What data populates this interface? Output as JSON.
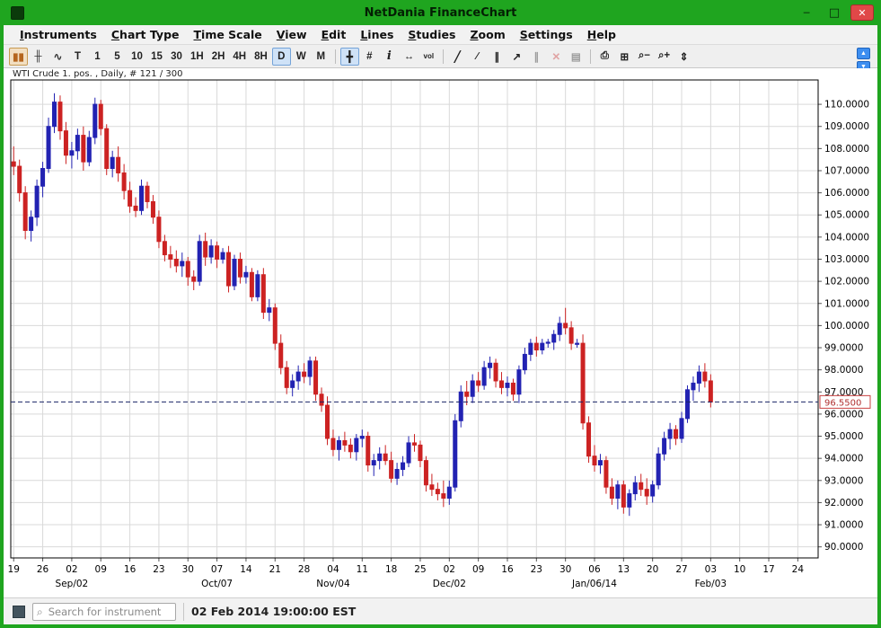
{
  "window": {
    "title": "NetDania FinanceChart",
    "minimize_glyph": "─",
    "maximize_glyph": "□",
    "close_glyph": "✕"
  },
  "menu": {
    "items": [
      {
        "label": "Instruments"
      },
      {
        "label": "Chart Type"
      },
      {
        "label": "Time Scale"
      },
      {
        "label": "View"
      },
      {
        "label": "Edit"
      },
      {
        "label": "Lines"
      },
      {
        "label": "Studies"
      },
      {
        "label": "Zoom"
      },
      {
        "label": "Settings"
      },
      {
        "label": "Help"
      }
    ]
  },
  "toolbar": {
    "buttons": [
      {
        "name": "candlestick-chart-button",
        "glyph": "▮▮",
        "color": "#b5651d",
        "pressed_warm": true
      },
      {
        "name": "ohlc-bar-chart-button",
        "glyph": "╫",
        "color": "#333333"
      },
      {
        "name": "line-chart-button",
        "glyph": "∿",
        "color": "#333333"
      },
      {
        "name": "tick-scale-button",
        "label": "T"
      },
      {
        "name": "scale-1m-button",
        "label": "1"
      },
      {
        "name": "scale-5m-button",
        "label": "5"
      },
      {
        "name": "scale-10m-button",
        "label": "10"
      },
      {
        "name": "scale-15m-button",
        "label": "15"
      },
      {
        "name": "scale-30m-button",
        "label": "30"
      },
      {
        "name": "scale-1h-button",
        "label": "1H"
      },
      {
        "name": "scale-2h-button",
        "label": "2H"
      },
      {
        "name": "scale-4h-button",
        "label": "4H"
      },
      {
        "name": "scale-8h-button",
        "label": "8H"
      },
      {
        "name": "scale-daily-button",
        "label": "D",
        "pressed": true
      },
      {
        "name": "scale-weekly-button",
        "label": "W"
      },
      {
        "name": "scale-monthly-button",
        "label": "M"
      },
      {
        "sep": true
      },
      {
        "name": "crosshair-button",
        "glyph": "╋",
        "pressed": true
      },
      {
        "name": "grid-button",
        "glyph": "#"
      },
      {
        "name": "info-button",
        "glyph": "i",
        "italic": true
      },
      {
        "name": "scroll-horizontal-button",
        "glyph": "↔"
      },
      {
        "name": "volume-button",
        "glyph": "vol",
        "tiny": true
      },
      {
        "sep": true
      },
      {
        "name": "trendline-button",
        "glyph": "╱"
      },
      {
        "name": "ray-line-button",
        "glyph": "∕"
      },
      {
        "name": "channel-lines-button",
        "glyph": "∥"
      },
      {
        "name": "draw-arrow-button",
        "glyph": "↗"
      },
      {
        "name": "parallel-line-button",
        "glyph": "∥",
        "disabled": true
      },
      {
        "name": "delete-drawing-button",
        "glyph": "✕",
        "color": "#cc3333",
        "disabled": true
      },
      {
        "name": "delete-studies-button",
        "glyph": "▤",
        "disabled": true
      },
      {
        "sep": true
      },
      {
        "name": "print-button",
        "glyph": "⎙"
      },
      {
        "name": "print-preview-button",
        "glyph": "⊞"
      },
      {
        "name": "zoom-out-button",
        "glyph": "⌕−"
      },
      {
        "name": "zoom-in-button",
        "glyph": "⌕+"
      },
      {
        "name": "fit-vertical-scale-button",
        "glyph": "⇕"
      }
    ],
    "scroll_up_glyph": "▲",
    "scroll_down_glyph": "▼"
  },
  "chart": {
    "label": "WTI Crude 1. pos. , Daily, # 121 / 300"
  },
  "chart_data": {
    "type": "candlestick",
    "instrument": "WTI Crude 1. pos.",
    "timeframe": "Daily",
    "bar_count_label": "# 121 / 300",
    "up_color": "#2222b2",
    "down_color": "#cc2222",
    "grid_color": "#d9d9d9",
    "dashed_line_color": "#1a2466",
    "price_tag_border": "#c84040",
    "price_tag_text": "#b03030",
    "y_min": 90,
    "y_max": 110,
    "y_step": 1,
    "price_scale_range": [
      89.5,
      111.1
    ],
    "total_slots": 139,
    "last_price": 96.55,
    "last_price_label": "96.5500",
    "x_ticks": [
      {
        "label": "19",
        "i": 0
      },
      {
        "label": "26",
        "i": 5
      },
      {
        "label": "02",
        "i": 10
      },
      {
        "label": "09",
        "i": 15
      },
      {
        "label": "16",
        "i": 20
      },
      {
        "label": "23",
        "i": 25
      },
      {
        "label": "30",
        "i": 30
      },
      {
        "label": "07",
        "i": 35
      },
      {
        "label": "14",
        "i": 40
      },
      {
        "label": "21",
        "i": 45
      },
      {
        "label": "28",
        "i": 50
      },
      {
        "label": "04",
        "i": 55
      },
      {
        "label": "11",
        "i": 60
      },
      {
        "label": "18",
        "i": 65
      },
      {
        "label": "25",
        "i": 70
      },
      {
        "label": "02",
        "i": 75
      },
      {
        "label": "09",
        "i": 80
      },
      {
        "label": "16",
        "i": 85
      },
      {
        "label": "23",
        "i": 90
      },
      {
        "label": "30",
        "i": 95
      },
      {
        "label": "06",
        "i": 100
      },
      {
        "label": "13",
        "i": 105
      },
      {
        "label": "20",
        "i": 110
      },
      {
        "label": "27",
        "i": 115
      },
      {
        "label": "03",
        "i": 120
      },
      {
        "label": "10",
        "i": 125
      },
      {
        "label": "17",
        "i": 130
      },
      {
        "label": "24",
        "i": 135
      }
    ],
    "month_ticks": [
      {
        "label": "Sep/02",
        "i": 10
      },
      {
        "label": "Oct/07",
        "i": 35
      },
      {
        "label": "Nov/04",
        "i": 55
      },
      {
        "label": "Dec/02",
        "i": 75
      },
      {
        "label": "Jan/06/14",
        "i": 100
      },
      {
        "label": "Feb/03",
        "i": 120
      }
    ],
    "candles": [
      [
        "08-19",
        107.4,
        108.1,
        106.8,
        107.2
      ],
      [
        "08-20",
        107.2,
        107.5,
        105.6,
        106.0
      ],
      [
        "08-21",
        106.0,
        106.3,
        103.9,
        104.3
      ],
      [
        "08-22",
        104.3,
        105.2,
        103.8,
        104.9
      ],
      [
        "08-23",
        104.9,
        106.6,
        104.5,
        106.3
      ],
      [
        "08-26",
        106.3,
        107.4,
        105.8,
        107.1
      ],
      [
        "08-27",
        107.1,
        109.4,
        106.9,
        109.0
      ],
      [
        "08-28",
        109.0,
        110.5,
        108.7,
        110.1
      ],
      [
        "08-29",
        110.1,
        110.4,
        108.4,
        108.8
      ],
      [
        "08-30",
        108.8,
        109.2,
        107.3,
        107.7
      ],
      [
        "09-02",
        107.7,
        108.3,
        107.1,
        107.9
      ],
      [
        "09-03",
        107.9,
        108.9,
        107.5,
        108.6
      ],
      [
        "09-04",
        108.6,
        109.0,
        107.0,
        107.4
      ],
      [
        "09-05",
        107.4,
        108.8,
        107.2,
        108.5
      ],
      [
        "09-06",
        108.5,
        110.3,
        108.2,
        110.0
      ],
      [
        "09-09",
        110.0,
        110.2,
        108.6,
        108.9
      ],
      [
        "09-10",
        108.9,
        109.1,
        106.8,
        107.1
      ],
      [
        "09-11",
        107.1,
        107.9,
        106.7,
        107.6
      ],
      [
        "09-12",
        107.6,
        108.1,
        106.5,
        106.9
      ],
      [
        "09-13",
        106.9,
        107.3,
        105.7,
        106.1
      ],
      [
        "09-16",
        106.1,
        106.5,
        105.1,
        105.4
      ],
      [
        "09-17",
        105.4,
        105.8,
        104.9,
        105.2
      ],
      [
        "09-18",
        105.2,
        106.6,
        105.0,
        106.3
      ],
      [
        "09-19",
        106.3,
        106.5,
        105.3,
        105.6
      ],
      [
        "09-20",
        105.6,
        105.9,
        104.6,
        104.9
      ],
      [
        "09-23",
        104.9,
        105.2,
        103.5,
        103.8
      ],
      [
        "09-24",
        103.8,
        104.1,
        102.9,
        103.2
      ],
      [
        "09-25",
        103.2,
        103.6,
        102.6,
        103.0
      ],
      [
        "09-26",
        103.0,
        103.4,
        102.4,
        102.7
      ],
      [
        "09-27",
        102.7,
        103.3,
        102.2,
        102.9
      ],
      [
        "09-30",
        102.9,
        103.1,
        101.8,
        102.2
      ],
      [
        "10-01",
        102.2,
        102.5,
        101.6,
        102.0
      ],
      [
        "10-02",
        102.0,
        104.1,
        101.8,
        103.8
      ],
      [
        "10-03",
        103.8,
        104.2,
        102.7,
        103.1
      ],
      [
        "10-04",
        103.1,
        103.9,
        102.8,
        103.6
      ],
      [
        "10-07",
        103.6,
        103.8,
        102.6,
        103.0
      ],
      [
        "10-08",
        103.0,
        103.5,
        102.8,
        103.3
      ],
      [
        "10-09",
        103.3,
        103.6,
        101.5,
        101.8
      ],
      [
        "10-10",
        101.8,
        103.2,
        101.6,
        103.0
      ],
      [
        "10-11",
        103.0,
        103.3,
        101.9,
        102.2
      ],
      [
        "10-14",
        102.2,
        102.7,
        101.9,
        102.4
      ],
      [
        "10-15",
        102.4,
        102.6,
        101.1,
        101.3
      ],
      [
        "10-16",
        101.3,
        102.5,
        101.1,
        102.3
      ],
      [
        "10-17",
        102.3,
        102.6,
        100.3,
        100.6
      ],
      [
        "10-18",
        100.6,
        101.2,
        100.2,
        100.8
      ],
      [
        "10-21",
        100.8,
        101.0,
        98.9,
        99.2
      ],
      [
        "10-22",
        99.2,
        99.6,
        97.8,
        98.1
      ],
      [
        "10-23",
        98.1,
        98.4,
        96.9,
        97.2
      ],
      [
        "10-24",
        97.2,
        97.8,
        96.8,
        97.5
      ],
      [
        "10-25",
        97.5,
        98.2,
        97.1,
        97.9
      ],
      [
        "10-28",
        97.9,
        98.3,
        97.4,
        97.7
      ],
      [
        "10-29",
        97.7,
        98.6,
        97.3,
        98.4
      ],
      [
        "10-30",
        98.4,
        98.6,
        96.6,
        96.9
      ],
      [
        "10-31",
        96.9,
        97.2,
        96.1,
        96.4
      ],
      [
        "11-01",
        96.4,
        96.8,
        94.6,
        94.9
      ],
      [
        "11-04",
        94.9,
        95.3,
        94.1,
        94.4
      ],
      [
        "11-05",
        94.4,
        95.0,
        93.9,
        94.8
      ],
      [
        "11-06",
        94.8,
        95.2,
        94.3,
        94.6
      ],
      [
        "11-07",
        94.6,
        94.9,
        94.0,
        94.3
      ],
      [
        "11-08",
        94.3,
        95.1,
        93.9,
        94.9
      ],
      [
        "11-11",
        94.9,
        95.3,
        94.5,
        95.0
      ],
      [
        "11-12",
        95.0,
        95.2,
        93.4,
        93.7
      ],
      [
        "11-13",
        93.7,
        94.2,
        93.2,
        93.9
      ],
      [
        "11-14",
        93.9,
        94.5,
        93.5,
        94.2
      ],
      [
        "11-15",
        94.2,
        94.6,
        93.7,
        93.9
      ],
      [
        "11-18",
        93.9,
        94.3,
        92.9,
        93.1
      ],
      [
        "11-19",
        93.1,
        93.8,
        92.8,
        93.5
      ],
      [
        "11-20",
        93.5,
        94.1,
        93.2,
        93.8
      ],
      [
        "11-21",
        93.8,
        95.0,
        93.6,
        94.7
      ],
      [
        "11-22",
        94.7,
        95.1,
        94.3,
        94.6
      ],
      [
        "11-25",
        94.6,
        94.8,
        93.6,
        93.9
      ],
      [
        "11-26",
        93.9,
        94.1,
        92.5,
        92.8
      ],
      [
        "11-27",
        92.8,
        93.3,
        92.3,
        92.6
      ],
      [
        "11-28",
        92.6,
        92.9,
        92.1,
        92.4
      ],
      [
        "11-29",
        92.4,
        93.0,
        91.8,
        92.2
      ],
      [
        "12-02",
        92.2,
        93.0,
        91.9,
        92.7
      ],
      [
        "12-03",
        92.7,
        96.0,
        92.5,
        95.7
      ],
      [
        "12-04",
        95.7,
        97.3,
        95.4,
        97.0
      ],
      [
        "12-05",
        97.0,
        97.5,
        96.4,
        96.8
      ],
      [
        "12-06",
        96.8,
        97.8,
        96.5,
        97.5
      ],
      [
        "12-09",
        97.5,
        97.9,
        97.0,
        97.3
      ],
      [
        "12-10",
        97.3,
        98.4,
        97.1,
        98.1
      ],
      [
        "12-11",
        98.1,
        98.6,
        97.6,
        98.3
      ],
      [
        "12-12",
        98.3,
        98.5,
        97.2,
        97.5
      ],
      [
        "12-13",
        97.5,
        97.9,
        96.9,
        97.2
      ],
      [
        "12-16",
        97.2,
        97.7,
        96.8,
        97.4
      ],
      [
        "12-17",
        97.4,
        97.6,
        96.6,
        96.9
      ],
      [
        "12-18",
        96.9,
        98.2,
        96.5,
        98.0
      ],
      [
        "12-19",
        98.0,
        99.0,
        97.8,
        98.7
      ],
      [
        "12-20",
        98.7,
        99.4,
        98.4,
        99.2
      ],
      [
        "12-23",
        99.2,
        99.5,
        98.6,
        98.9
      ],
      [
        "12-24",
        98.9,
        99.4,
        98.7,
        99.2
      ],
      [
        "12-25",
        99.2,
        99.4,
        99.0,
        99.25
      ],
      [
        "12-26",
        99.25,
        99.8,
        98.9,
        99.6
      ],
      [
        "12-27",
        99.6,
        100.4,
        99.3,
        100.1
      ],
      [
        "12-30",
        100.1,
        100.8,
        99.6,
        99.9
      ],
      [
        "12-31",
        99.9,
        100.2,
        98.9,
        99.2
      ],
      [
        "01-01",
        99.2,
        99.4,
        99.0,
        99.2
      ],
      [
        "01-02",
        99.2,
        99.6,
        95.3,
        95.6
      ],
      [
        "01-03",
        95.6,
        95.9,
        93.8,
        94.1
      ],
      [
        "01-06",
        94.1,
        94.6,
        93.4,
        93.7
      ],
      [
        "01-07",
        93.7,
        94.2,
        93.3,
        93.9
      ],
      [
        "01-08",
        93.9,
        94.1,
        92.4,
        92.7
      ],
      [
        "01-09",
        92.7,
        93.1,
        91.9,
        92.2
      ],
      [
        "01-10",
        92.2,
        93.0,
        91.7,
        92.8
      ],
      [
        "01-13",
        92.8,
        93.0,
        91.5,
        91.8
      ],
      [
        "01-14",
        91.8,
        92.6,
        91.4,
        92.4
      ],
      [
        "01-15",
        92.4,
        93.2,
        92.1,
        92.9
      ],
      [
        "01-16",
        92.9,
        93.3,
        92.3,
        92.6
      ],
      [
        "01-17",
        92.6,
        93.1,
        91.9,
        92.3
      ],
      [
        "01-20",
        92.3,
        93.0,
        92.0,
        92.8
      ],
      [
        "01-21",
        92.8,
        94.5,
        92.6,
        94.2
      ],
      [
        "01-22",
        94.2,
        95.2,
        93.9,
        94.9
      ],
      [
        "01-23",
        94.9,
        95.6,
        94.4,
        95.3
      ],
      [
        "01-24",
        95.3,
        95.5,
        94.6,
        94.9
      ],
      [
        "01-27",
        94.9,
        96.1,
        94.7,
        95.8
      ],
      [
        "01-28",
        95.8,
        97.3,
        95.6,
        97.1
      ],
      [
        "01-29",
        97.1,
        97.7,
        96.6,
        97.4
      ],
      [
        "01-30",
        97.4,
        98.2,
        97.0,
        97.9
      ],
      [
        "01-31",
        97.9,
        98.3,
        97.2,
        97.5
      ],
      [
        "02-03",
        97.5,
        97.8,
        96.3,
        96.55
      ]
    ]
  },
  "statusbar": {
    "search_placeholder": "Search for instrument",
    "timestamp": "02 Feb 2014 19:00:00 EST"
  }
}
